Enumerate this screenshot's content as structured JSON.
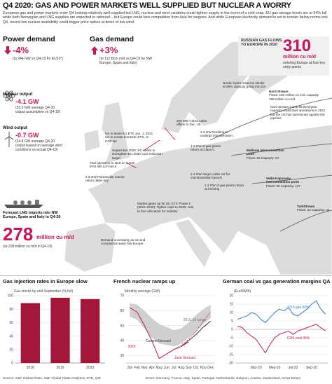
{
  "header": {
    "title": "Q4 2020: GAS AND POWER MARKETS WELL SUPPLIED BUT NUCLEAR A WORRY",
    "intro": "European gas and power markets enter Q4 looking relatively well supplied but LNG, nuclear and wind variables could tighten supply in the event of a cold snap. EU gas storage levels are at 94% full while both Norwegian and LNG supplies are expected to rebound – but Europe could face competition from Asia for cargoes. And while European electricity demand is set to remain below norms into Q4, record low nuclear availability could trigger price spikes at times of low wind."
  },
  "stats": {
    "power": {
      "label": "Power demand",
      "value": "-4%",
      "note": "(to 244 GW vs Q4-19 for EU10*)"
    },
    "gas": {
      "label": "Gas demand",
      "value": "+3%",
      "note": "(to 112 Bcm m/d vs Q4-19 for NW Europe, Spain and Italy)"
    },
    "nuclear": {
      "label": "Nuclear output",
      "value": "-4.1 GW",
      "note": "(55.3 GW average Q4-20 output assumption vs Q4-19)"
    },
    "wind": {
      "label": "Wind output",
      "value": "-0.7 GW",
      "note": "(34.8 GW average Q4-20 output based on average wind conditions vs actual Q4-19)"
    },
    "lng": {
      "label": "Forecast LNG imports into NW Europe, Spain and Italy in Q4-20",
      "value": "278",
      "unit": "million cu m/d",
      "note": "(vs 299 million cu m/d in Q4-19)"
    },
    "russia": {
      "label": "RUSSIAN GAS FLOWS TO EUROPE IN 2020",
      "value": "310",
      "unit": "million cu m/d",
      "note": "entering Europe at four key entry points"
    }
  },
  "annotations": [
    {
      "text": "Nordic hydro reservoir stocks at 89% capacity going into Q4"
    },
    {
      "title": "Nord Stream",
      "text": "Flows: 150 million cu m/d, capacity 158 million cu m/d"
    },
    {
      "text": "Nord Stream 2 with 55 Bcm/year capacity could start operations in 2021 but the US has sanctioned against the pipeline"
    },
    {
      "text": "200 MW Cobra cable offline to Dec. 25"
    },
    {
      "text": "1.4-GW Nordlink to undergo trial operation"
    },
    {
      "text": "UK to leave EU ETS Jan. 1, 2021. UK to create domestic ETS, or CO2 tax"
    },
    {
      "title": "Mallnow interconnection point",
      "text": "Flows: 66 Capacity: 87"
    },
    {
      "text": "September 2020: EC seeks to strengthen EU 2030 CO2 reduction target"
    },
    {
      "text": "1.3 GW of gas plants return at Claus C"
    },
    {
      "text": "Trial operation to start on 1 GW IFA2 link to France"
    },
    {
      "text": "2.6-GW Flamanville reactor return dates key"
    },
    {
      "text": "1.4 GW Alegro cable set for mid-November launch"
    },
    {
      "text": "1.4 GW of gas plants return at Irsching"
    },
    {
      "title": "Velke Kapusany interconnection point",
      "text": "Flows: 90 Capacity: 127"
    },
    {
      "text": "Market gears up for EU ETS Phase 4 (2021-2030): Tighter caps to 2030, cuts to free allocation for industry"
    },
    {
      "title": "TurkStream",
      "text": "Flows: 32 Capacity: 44"
    },
    {
      "text": "Demand uncertainty as second coronavirus wave hits Europe"
    }
  ],
  "chart_data": [
    {
      "type": "bar",
      "title": "Gas injection rates in Europe slow",
      "subtitle": "Gas stocks by end-September (% full)",
      "categories": [
        "2018",
        "2019",
        "2020"
      ],
      "values": [
        89,
        97,
        95
      ],
      "color": "#a3183a",
      "ylim": [
        0,
        100
      ],
      "yticks": [
        0,
        20,
        40,
        60,
        80,
        100
      ],
      "grid": true
    },
    {
      "type": "line",
      "title": "French nuclear ramps up",
      "subtitle": "Monthly average (GW)",
      "categories": [
        "Jan",
        "Feb",
        "Mar",
        "Apr",
        "May",
        "Jun",
        "Jul",
        "Aug",
        "Sep",
        "Oct",
        "Nov",
        "Dec"
      ],
      "ylim": [
        25,
        70
      ],
      "yticks": [
        30,
        40,
        50,
        60,
        70
      ],
      "grid": true,
      "series": [
        {
          "name": "2015-19 range",
          "color": "#cfcfcf",
          "style": "range",
          "low": [
            56,
            54,
            48,
            42,
            38,
            37,
            36,
            38,
            42,
            46,
            51,
            55
          ],
          "high": [
            65,
            64,
            60,
            55,
            51,
            49,
            47,
            48,
            52,
            57,
            61,
            64
          ]
        },
        {
          "name": "2020",
          "color": "#c2185b",
          "style": "solid",
          "values": [
            62,
            59,
            50,
            40,
            28,
            31,
            34,
            36,
            39,
            null,
            null,
            null
          ]
        },
        {
          "name": "Current forecast",
          "color": "#333333",
          "style": "solid",
          "values": [
            null,
            null,
            null,
            null,
            null,
            null,
            null,
            36,
            40,
            44,
            49,
            53
          ]
        },
        {
          "name": "June forecast",
          "color": "#c2185b",
          "style": "dotted",
          "values": [
            null,
            null,
            null,
            null,
            null,
            31,
            34,
            37,
            41,
            46,
            53,
            59
          ]
        }
      ]
    },
    {
      "type": "line",
      "title": "German coal vs gas generation margins QA",
      "subtitle": "(Eur/MWh)",
      "categories": [
        null,
        null,
        null,
        null,
        "Mar-20",
        null,
        null,
        null,
        "May-20",
        null,
        null,
        null,
        "Jul-20",
        null,
        null,
        null,
        "Sep-20",
        null,
        null,
        null
      ],
      "ylim": [
        -20,
        20
      ],
      "yticks": [
        -20,
        -15,
        -10,
        -5,
        0,
        5,
        10,
        15,
        20
      ],
      "grid": true,
      "series": [
        {
          "name": "CSS gas 50%",
          "color": "#2a7fc4",
          "style": "solid",
          "values": [
            6,
            7,
            8,
            10,
            9,
            6,
            4,
            7,
            10,
            12,
            11,
            13,
            9,
            8,
            10,
            12,
            15,
            17,
            12,
            9
          ]
        },
        {
          "name": "CDS coal 36%",
          "color": "#c2185b",
          "style": "solid",
          "values": [
            2,
            1,
            -2,
            -4,
            -6,
            -10,
            -14,
            -9,
            -5,
            -3,
            -2,
            -1,
            -3,
            -1,
            0,
            1,
            2,
            3,
            1,
            -1
          ]
        }
      ]
    }
  ],
  "footer": {
    "source": "Source: S&P Global Platts, S&P Global Platts Analytics, RTE, QIE",
    "note": "EU10: Germany, France, Italy, Spain, Portugal, Netherlands, Belgium, Austria, Switzerland, Great Britain"
  }
}
